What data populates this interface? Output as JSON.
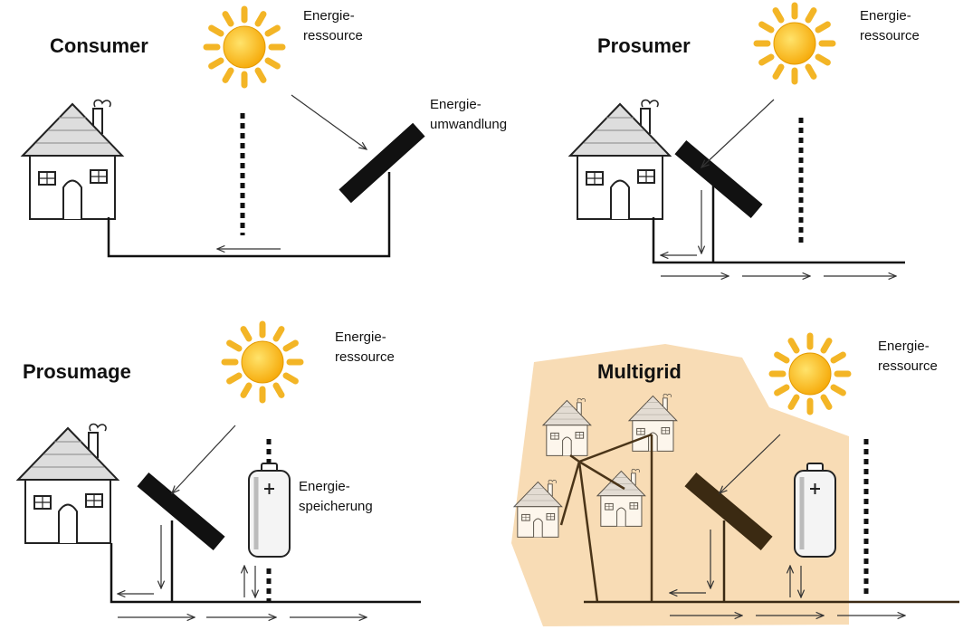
{
  "panels": [
    {
      "title": "Consumer",
      "labels": [
        {
          "lines": [
            "Energie-",
            "ressource"
          ]
        },
        {
          "lines": [
            "Energie-",
            "umwandlung"
          ]
        }
      ]
    },
    {
      "title": "Prosumer",
      "labels": [
        {
          "lines": [
            "Energie-",
            "ressource"
          ]
        }
      ]
    },
    {
      "title": "Prosumage",
      "labels": [
        {
          "lines": [
            "Energie-",
            "ressource"
          ]
        },
        {
          "lines": [
            "Energie-",
            "speicherung"
          ]
        }
      ]
    },
    {
      "title": "Multigrid",
      "labels": [
        {
          "lines": [
            "Energie-",
            "ressource"
          ]
        }
      ]
    }
  ]
}
